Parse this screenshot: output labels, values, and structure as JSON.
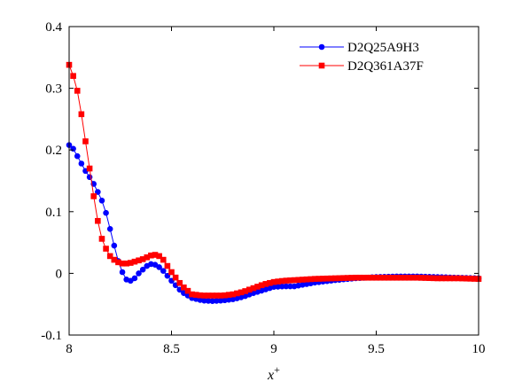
{
  "chart_data": {
    "type": "line",
    "title": "",
    "xlabel": "x+",
    "ylabel": "",
    "xlim": [
      8,
      10
    ],
    "ylim": [
      -0.1,
      0.4
    ],
    "xticks": [
      8,
      8.5,
      9,
      9.5,
      10
    ],
    "yticks": [
      -0.1,
      0,
      0.1,
      0.2,
      0.3,
      0.4
    ],
    "xtick_labels": [
      "8",
      "8.5",
      "9",
      "9.5",
      "10"
    ],
    "ytick_labels": [
      "-0.1",
      "0",
      "0.1",
      "0.2",
      "0.3",
      "0.4"
    ],
    "grid": false,
    "legend": "top-right",
    "series": [
      {
        "name": "D2Q25A9H3",
        "color": "#0000ff",
        "marker": "circle",
        "x": [
          8.0,
          8.02,
          8.04,
          8.06,
          8.08,
          8.1,
          8.12,
          8.14,
          8.16,
          8.18,
          8.2,
          8.22,
          8.24,
          8.26,
          8.28,
          8.3,
          8.32,
          8.34,
          8.36,
          8.38,
          8.4,
          8.42,
          8.44,
          8.46,
          8.48,
          8.5,
          8.55,
          8.6,
          8.65,
          8.7,
          8.75,
          8.8,
          8.85,
          8.9,
          8.95,
          9.0,
          9.05,
          9.1,
          9.15,
          9.2,
          9.3,
          9.4,
          9.5,
          9.6,
          9.7,
          9.8,
          9.9,
          10.0
        ],
        "y": [
          0.208,
          0.202,
          0.19,
          0.178,
          0.166,
          0.156,
          0.145,
          0.132,
          0.118,
          0.098,
          0.072,
          0.045,
          0.02,
          0.002,
          -0.01,
          -0.012,
          -0.008,
          0.0,
          0.006,
          0.012,
          0.015,
          0.014,
          0.01,
          0.004,
          -0.004,
          -0.012,
          -0.03,
          -0.04,
          -0.044,
          -0.045,
          -0.044,
          -0.042,
          -0.038,
          -0.032,
          -0.027,
          -0.022,
          -0.021,
          -0.021,
          -0.018,
          -0.015,
          -0.011,
          -0.008,
          -0.006,
          -0.005,
          -0.005,
          -0.006,
          -0.007,
          -0.008
        ]
      },
      {
        "name": "D2Q361A37F",
        "color": "#ff0000",
        "marker": "square",
        "x": [
          8.0,
          8.02,
          8.04,
          8.06,
          8.08,
          8.1,
          8.12,
          8.14,
          8.16,
          8.18,
          8.2,
          8.22,
          8.24,
          8.26,
          8.28,
          8.3,
          8.32,
          8.34,
          8.36,
          8.38,
          8.4,
          8.42,
          8.44,
          8.46,
          8.48,
          8.5,
          8.55,
          8.6,
          8.65,
          8.7,
          8.75,
          8.8,
          8.85,
          8.9,
          8.95,
          9.0,
          9.05,
          9.1,
          9.15,
          9.2,
          9.3,
          9.4,
          9.5,
          9.6,
          9.7,
          9.8,
          9.9,
          10.0
        ],
        "y": [
          0.338,
          0.32,
          0.296,
          0.258,
          0.214,
          0.17,
          0.125,
          0.085,
          0.056,
          0.04,
          0.028,
          0.022,
          0.018,
          0.016,
          0.016,
          0.017,
          0.019,
          0.021,
          0.023,
          0.026,
          0.029,
          0.03,
          0.028,
          0.022,
          0.012,
          0.002,
          -0.02,
          -0.034,
          -0.036,
          -0.036,
          -0.036,
          -0.034,
          -0.03,
          -0.024,
          -0.018,
          -0.014,
          -0.012,
          -0.011,
          -0.01,
          -0.009,
          -0.008,
          -0.007,
          -0.007,
          -0.007,
          -0.007,
          -0.008,
          -0.008,
          -0.009
        ]
      }
    ]
  }
}
